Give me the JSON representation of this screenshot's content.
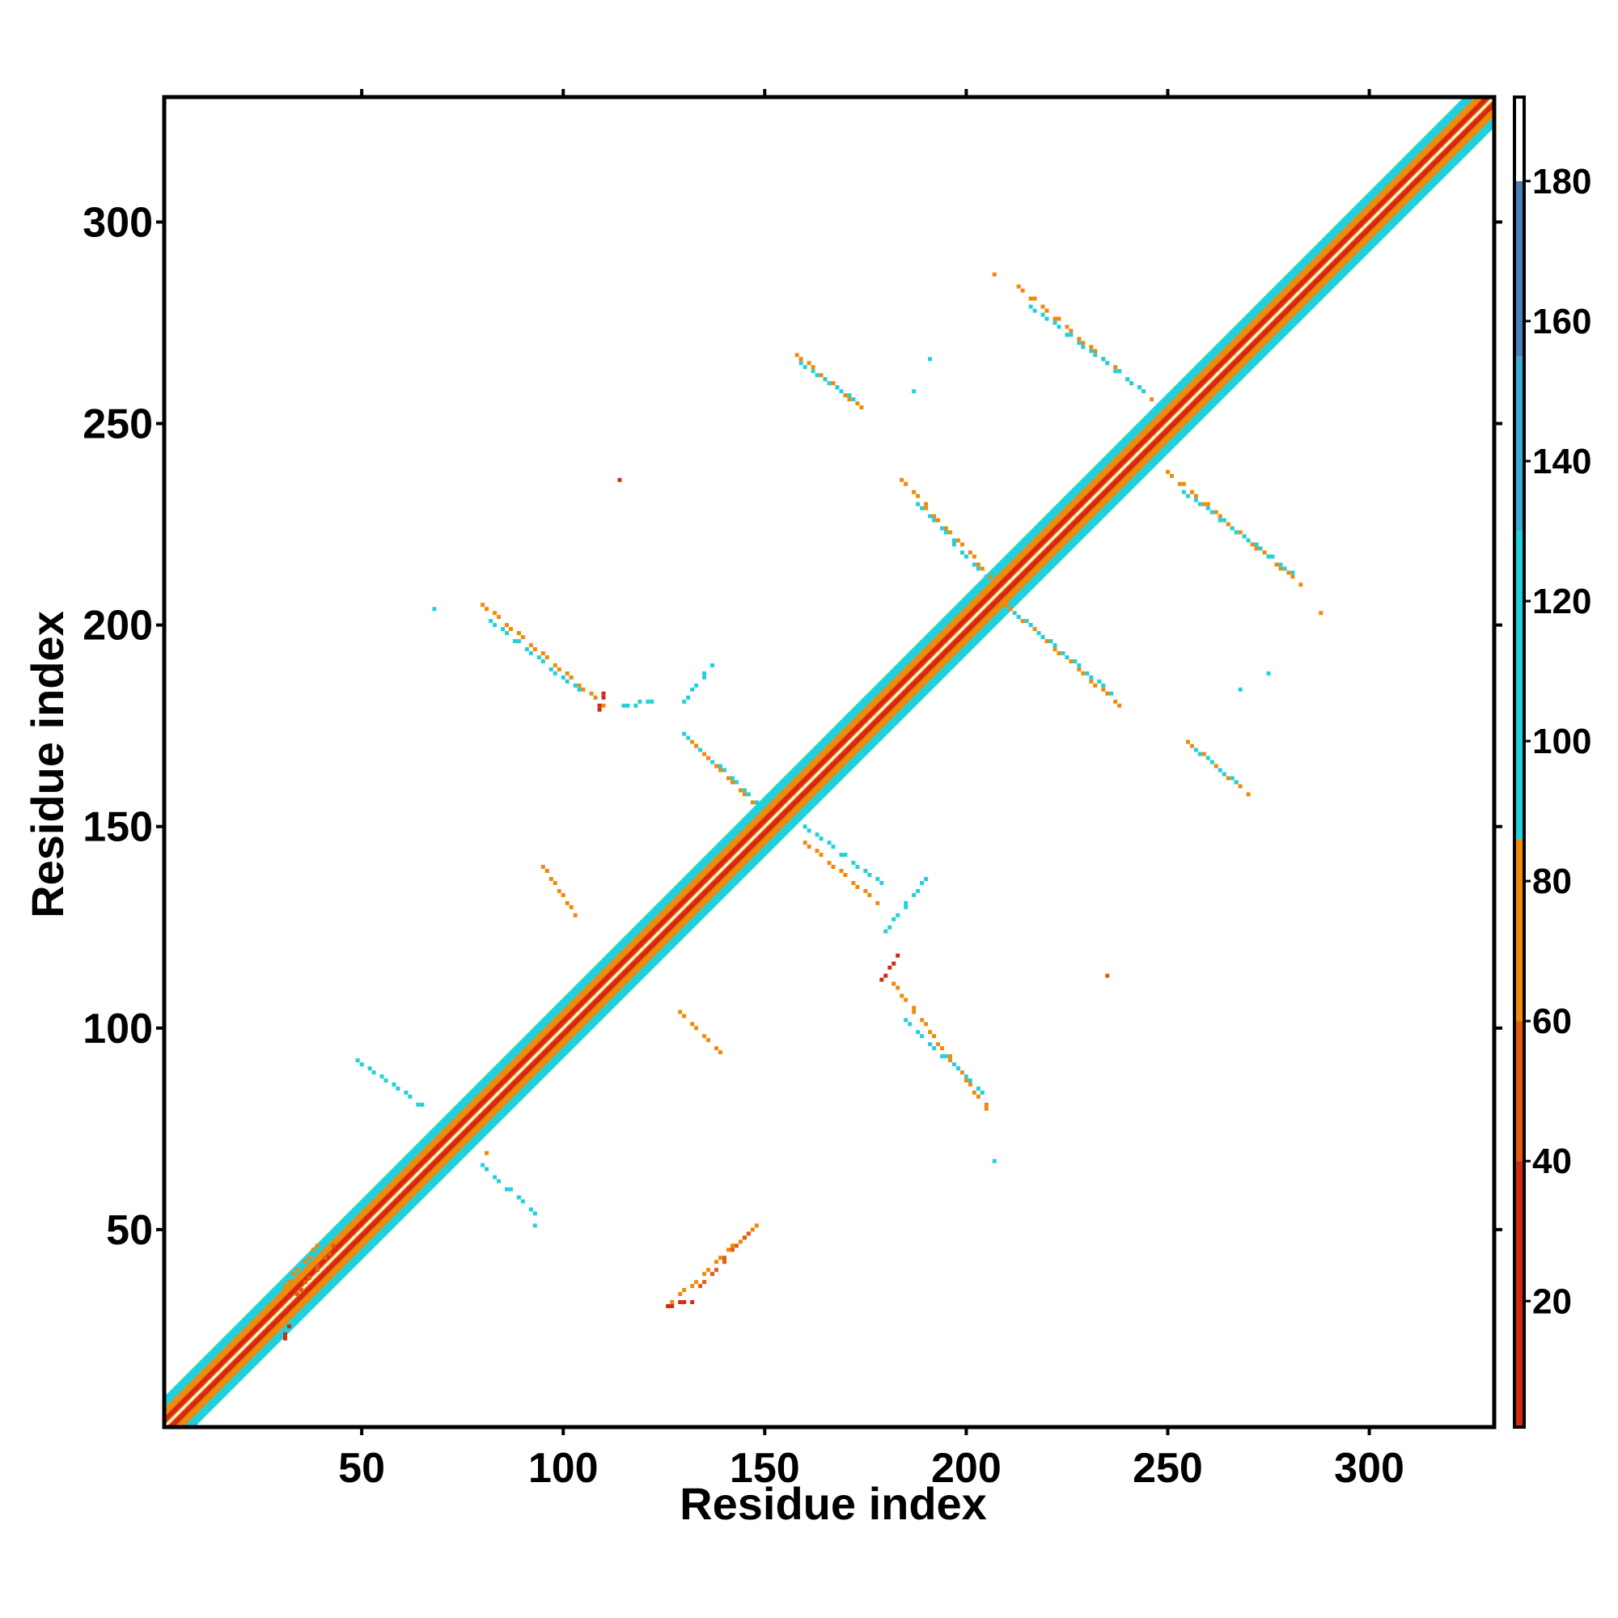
{
  "chart_data": {
    "type": "heatmap",
    "title": "",
    "xlabel": "Residue index",
    "ylabel": "Residue index",
    "xlim": [
      1,
      331
    ],
    "ylim": [
      1,
      331
    ],
    "x_ticks": [
      50,
      100,
      150,
      200,
      250,
      300
    ],
    "y_ticks": [
      50,
      100,
      150,
      200,
      250,
      300
    ],
    "grid": false,
    "colorbar": {
      "range": [
        2,
        192
      ],
      "tick_labels": [
        "20",
        "40",
        "60",
        "80",
        "100",
        "120",
        "140",
        "160",
        "180"
      ],
      "tick_values": [
        20,
        40,
        60,
        80,
        100,
        120,
        140,
        160,
        180
      ],
      "bands": [
        {
          "from": 2,
          "to": 40,
          "color": "#d42a14"
        },
        {
          "from": 40,
          "to": 60,
          "color": "#e35a12"
        },
        {
          "from": 60,
          "to": 86,
          "color": "#f08a0a"
        },
        {
          "from": 86,
          "to": 130,
          "color": "#22d0dc"
        },
        {
          "from": 130,
          "to": 155,
          "color": "#3aaed2"
        },
        {
          "from": 155,
          "to": 180,
          "color": "#4a7fb8"
        },
        {
          "from": 180,
          "to": 192,
          "color": "#ffffff"
        }
      ]
    },
    "colors": {
      "red": "#d42a14",
      "orange": "#f08a0a",
      "dark_orange": "#e35a12",
      "cyan": "#22d0dc",
      "blue": "#3aaed2"
    },
    "diagonal": {
      "from": 1,
      "to": 331,
      "near_width": 3,
      "mid_width": 6
    },
    "contact_segments": [
      {
        "x": [
          31,
          40
        ],
        "y": [
          36,
          47
        ],
        "color": "orange"
      },
      {
        "x": [
          34,
          43
        ],
        "y": [
          34,
          46
        ],
        "color": "dark_orange"
      },
      {
        "x": [
          31,
          32
        ],
        "y": [
          23,
          26
        ],
        "color": "red"
      },
      {
        "x": [
          126,
          148
        ],
        "y": [
          31,
          51
        ],
        "color": "orange"
      },
      {
        "x": [
          134,
          146
        ],
        "y": [
          36,
          49
        ],
        "color": "dark_orange"
      },
      {
        "x": [
          126,
          132
        ],
        "y": [
          31,
          32
        ],
        "color": "red"
      },
      {
        "x": [
          80,
          94
        ],
        "y": [
          66,
          53
        ],
        "color": "cyan"
      },
      {
        "x": [
          49,
          66
        ],
        "y": [
          92,
          80
        ],
        "color": "cyan"
      },
      {
        "x": [
          95,
          103
        ],
        "y": [
          140,
          128
        ],
        "color": "orange"
      },
      {
        "x": [
          129,
          140
        ],
        "y": [
          104,
          93
        ],
        "color": "orange"
      },
      {
        "x": [
          160,
          178
        ],
        "y": [
          146,
          131
        ],
        "color": "orange"
      },
      {
        "x": [
          160,
          180
        ],
        "y": [
          150,
          135
        ],
        "color": "cyan"
      },
      {
        "x": [
          182,
          206
        ],
        "y": [
          111,
          79
        ],
        "color": "orange"
      },
      {
        "x": [
          185,
          205
        ],
        "y": [
          102,
          83
        ],
        "color": "cyan"
      },
      {
        "x": [
          179,
          183
        ],
        "y": [
          112,
          118
        ],
        "color": "red"
      },
      {
        "x": [
          180,
          190
        ],
        "y": [
          124,
          137
        ],
        "color": "cyan"
      },
      {
        "x": [
          80,
          110
        ],
        "y": [
          205,
          180
        ],
        "color": "orange"
      },
      {
        "x": [
          82,
          105
        ],
        "y": [
          201,
          183
        ],
        "color": "cyan"
      },
      {
        "x": [
          130,
          148
        ],
        "y": [
          173,
          156
        ],
        "color": "cyan"
      },
      {
        "x": [
          132,
          147
        ],
        "y": [
          171,
          156
        ],
        "color": "orange"
      },
      {
        "x": [
          115,
          122
        ],
        "y": [
          180,
          181
        ],
        "color": "cyan"
      },
      {
        "x": [
          130,
          137
        ],
        "y": [
          181,
          190
        ],
        "color": "cyan"
      },
      {
        "x": [
          109,
          110
        ],
        "y": [
          179,
          183
        ],
        "color": "red"
      },
      {
        "x": [
          184,
          208
        ],
        "y": [
          236,
          210
        ],
        "color": "orange"
      },
      {
        "x": [
          188,
          205
        ],
        "y": [
          230,
          212
        ],
        "color": "cyan"
      },
      {
        "x": [
          210,
          238
        ],
        "y": [
          205,
          180
        ],
        "color": "orange"
      },
      {
        "x": [
          212,
          236
        ],
        "y": [
          203,
          183
        ],
        "color": "cyan"
      },
      {
        "x": [
          158,
          175
        ],
        "y": [
          267,
          253
        ],
        "color": "orange"
      },
      {
        "x": [
          159,
          172
        ],
        "y": [
          265,
          256
        ],
        "color": "cyan"
      },
      {
        "x": [
          213,
          246
        ],
        "y": [
          284,
          256
        ],
        "color": "orange"
      },
      {
        "x": [
          216,
          244
        ],
        "y": [
          279,
          258
        ],
        "color": "cyan"
      },
      {
        "x": [
          250,
          283
        ],
        "y": [
          238,
          210
        ],
        "color": "orange"
      },
      {
        "x": [
          254,
          281
        ],
        "y": [
          233,
          213
        ],
        "color": "cyan"
      },
      {
        "x": [
          255,
          270
        ],
        "y": [
          171,
          158
        ],
        "color": "orange"
      },
      {
        "x": [
          257,
          268
        ],
        "y": [
          169,
          160
        ],
        "color": "cyan"
      }
    ],
    "contact_points": [
      {
        "x": 207,
        "y": 287,
        "color": "orange"
      },
      {
        "x": 114,
        "y": 236,
        "color": "red"
      },
      {
        "x": 68,
        "y": 204,
        "color": "cyan"
      },
      {
        "x": 235,
        "y": 113,
        "color": "dark_orange"
      },
      {
        "x": 207,
        "y": 67,
        "color": "cyan"
      },
      {
        "x": 288,
        "y": 203,
        "color": "orange"
      },
      {
        "x": 275,
        "y": 188,
        "color": "cyan"
      },
      {
        "x": 268,
        "y": 184,
        "color": "cyan"
      },
      {
        "x": 187,
        "y": 258,
        "color": "cyan"
      },
      {
        "x": 191,
        "y": 266,
        "color": "cyan"
      },
      {
        "x": 81,
        "y": 69,
        "color": "orange"
      },
      {
        "x": 93,
        "y": 51,
        "color": "cyan"
      }
    ]
  }
}
